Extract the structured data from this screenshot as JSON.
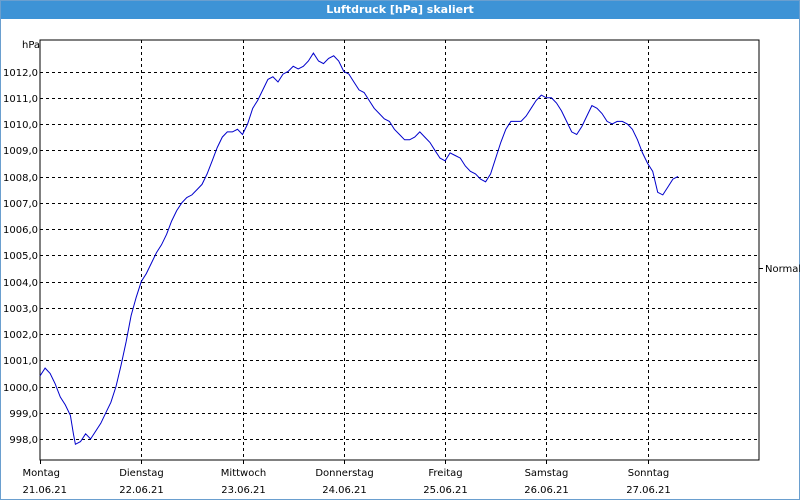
{
  "window": {
    "title": "Luftdruck [hPa] skaliert"
  },
  "colors": {
    "title_bar": "#3d93d6",
    "line": "#0000cc",
    "grid": "#000000"
  },
  "chart_data": {
    "type": "line",
    "title": "Luftdruck [hPa] skaliert",
    "ylabel": "hPa",
    "ylim": [
      997.2,
      1013.2
    ],
    "yticks": [
      998.0,
      999.0,
      1000.0,
      1001.0,
      1002.0,
      1003.0,
      1004.0,
      1005.0,
      1006.0,
      1007.0,
      1008.0,
      1009.0,
      1010.0,
      1011.0,
      1012.0
    ],
    "ytick_labels": [
      "998,0",
      "999,0",
      "1000,0",
      "1001,0",
      "1002,0",
      "1003,0",
      "1004,0",
      "1005,0",
      "1006,0",
      "1007,0",
      "1008,0",
      "1009,0",
      "1010,0",
      "1011,0",
      "1012,0"
    ],
    "xlim": [
      0,
      7.1
    ],
    "x_unit": "days",
    "grid": true,
    "days": [
      {
        "x": 0,
        "day": "Montag",
        "date": "21.06.21"
      },
      {
        "x": 1,
        "day": "Dienstag",
        "date": "22.06.21"
      },
      {
        "x": 2,
        "day": "Mittwoch",
        "date": "23.06.21"
      },
      {
        "x": 3,
        "day": "Donnerstag",
        "date": "24.06.21"
      },
      {
        "x": 4,
        "day": "Freitag",
        "date": "25.06.21"
      },
      {
        "x": 5,
        "day": "Samstag",
        "date": "26.06.21"
      },
      {
        "x": 6,
        "day": "Sonntag",
        "date": "27.06.21"
      }
    ],
    "annotation": "Normal",
    "series": [
      {
        "points": [
          [
            0.0,
            1000.4
          ],
          [
            0.05,
            1000.7
          ],
          [
            0.1,
            1000.5
          ],
          [
            0.15,
            1000.1
          ],
          [
            0.2,
            999.6
          ],
          [
            0.25,
            999.3
          ],
          [
            0.3,
            998.9
          ],
          [
            0.33,
            998.2
          ],
          [
            0.35,
            997.8
          ],
          [
            0.4,
            997.9
          ],
          [
            0.45,
            998.2
          ],
          [
            0.5,
            998.0
          ],
          [
            0.55,
            998.3
          ],
          [
            0.6,
            998.6
          ],
          [
            0.65,
            999.0
          ],
          [
            0.7,
            999.4
          ],
          [
            0.75,
            1000.0
          ],
          [
            0.8,
            1000.8
          ],
          [
            0.85,
            1001.7
          ],
          [
            0.9,
            1002.7
          ],
          [
            0.95,
            1003.4
          ],
          [
            1.0,
            1004.0
          ],
          [
            1.05,
            1004.3
          ],
          [
            1.1,
            1004.7
          ],
          [
            1.15,
            1005.1
          ],
          [
            1.2,
            1005.4
          ],
          [
            1.25,
            1005.8
          ],
          [
            1.3,
            1006.3
          ],
          [
            1.35,
            1006.7
          ],
          [
            1.4,
            1007.0
          ],
          [
            1.45,
            1007.2
          ],
          [
            1.5,
            1007.3
          ],
          [
            1.55,
            1007.5
          ],
          [
            1.6,
            1007.7
          ],
          [
            1.65,
            1008.1
          ],
          [
            1.7,
            1008.6
          ],
          [
            1.75,
            1009.1
          ],
          [
            1.8,
            1009.5
          ],
          [
            1.85,
            1009.7
          ],
          [
            1.9,
            1009.7
          ],
          [
            1.95,
            1009.8
          ],
          [
            2.0,
            1009.6
          ],
          [
            2.05,
            1010.0
          ],
          [
            2.1,
            1010.6
          ],
          [
            2.15,
            1010.9
          ],
          [
            2.2,
            1011.3
          ],
          [
            2.25,
            1011.7
          ],
          [
            2.3,
            1011.8
          ],
          [
            2.35,
            1011.6
          ],
          [
            2.4,
            1011.9
          ],
          [
            2.45,
            1012.0
          ],
          [
            2.5,
            1012.2
          ],
          [
            2.55,
            1012.1
          ],
          [
            2.6,
            1012.2
          ],
          [
            2.65,
            1012.4
          ],
          [
            2.7,
            1012.7
          ],
          [
            2.75,
            1012.4
          ],
          [
            2.8,
            1012.3
          ],
          [
            2.85,
            1012.5
          ],
          [
            2.9,
            1012.6
          ],
          [
            2.95,
            1012.4
          ],
          [
            3.0,
            1012.0
          ],
          [
            3.05,
            1011.9
          ],
          [
            3.1,
            1011.6
          ],
          [
            3.15,
            1011.3
          ],
          [
            3.2,
            1011.2
          ],
          [
            3.25,
            1010.9
          ],
          [
            3.3,
            1010.6
          ],
          [
            3.35,
            1010.4
          ],
          [
            3.4,
            1010.2
          ],
          [
            3.45,
            1010.1
          ],
          [
            3.5,
            1009.8
          ],
          [
            3.55,
            1009.6
          ],
          [
            3.6,
            1009.4
          ],
          [
            3.65,
            1009.4
          ],
          [
            3.7,
            1009.5
          ],
          [
            3.75,
            1009.7
          ],
          [
            3.8,
            1009.5
          ],
          [
            3.85,
            1009.3
          ],
          [
            3.9,
            1009.0
          ],
          [
            3.95,
            1008.7
          ],
          [
            4.0,
            1008.6
          ],
          [
            4.05,
            1008.9
          ],
          [
            4.1,
            1008.8
          ],
          [
            4.15,
            1008.7
          ],
          [
            4.2,
            1008.4
          ],
          [
            4.25,
            1008.2
          ],
          [
            4.3,
            1008.1
          ],
          [
            4.35,
            1007.9
          ],
          [
            4.4,
            1007.8
          ],
          [
            4.45,
            1008.1
          ],
          [
            4.5,
            1008.7
          ],
          [
            4.55,
            1009.3
          ],
          [
            4.6,
            1009.8
          ],
          [
            4.65,
            1010.1
          ],
          [
            4.7,
            1010.1
          ],
          [
            4.75,
            1010.1
          ],
          [
            4.8,
            1010.3
          ],
          [
            4.85,
            1010.6
          ],
          [
            4.9,
            1010.9
          ],
          [
            4.95,
            1011.1
          ],
          [
            5.0,
            1011.0
          ],
          [
            5.05,
            1011.0
          ],
          [
            5.1,
            1010.8
          ],
          [
            5.15,
            1010.5
          ],
          [
            5.2,
            1010.1
          ],
          [
            5.25,
            1009.7
          ],
          [
            5.3,
            1009.6
          ],
          [
            5.35,
            1009.9
          ],
          [
            5.4,
            1010.3
          ],
          [
            5.45,
            1010.7
          ],
          [
            5.5,
            1010.6
          ],
          [
            5.55,
            1010.4
          ],
          [
            5.6,
            1010.1
          ],
          [
            5.65,
            1010.0
          ],
          [
            5.7,
            1010.1
          ],
          [
            5.75,
            1010.1
          ],
          [
            5.8,
            1010.0
          ],
          [
            5.85,
            1009.8
          ],
          [
            5.9,
            1009.4
          ],
          [
            5.95,
            1008.9
          ],
          [
            6.0,
            1008.5
          ],
          [
            6.05,
            1008.2
          ],
          [
            6.1,
            1007.4
          ],
          [
            6.15,
            1007.3
          ],
          [
            6.2,
            1007.6
          ],
          [
            6.25,
            1007.9
          ],
          [
            6.3,
            1008.0
          ]
        ]
      }
    ]
  }
}
